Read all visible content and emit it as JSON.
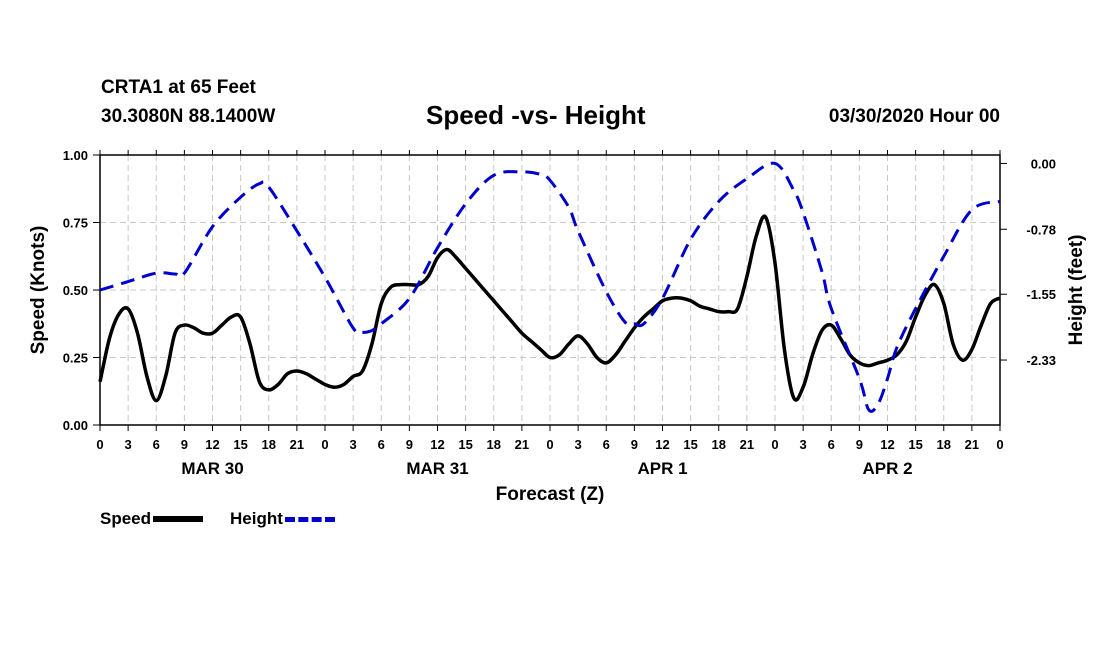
{
  "header": {
    "station": "CRTA1 at 65 Feet",
    "coords": "30.3080N 88.1400W",
    "title": "Speed -vs- Height",
    "date": "03/30/2020 Hour 00"
  },
  "legend": {
    "speed": "Speed",
    "height": "Height"
  },
  "colors": {
    "speed": "#000000",
    "height": "#0000cc",
    "grid": "#c8c8c8"
  },
  "chart_data": {
    "type": "line",
    "title": "Speed -vs- Height",
    "xlabel": "Forecast (Z)",
    "ylabel": "Speed (Knots)",
    "y2label": "Height (feet)",
    "xlim": [
      0,
      96
    ],
    "ylim": [
      0,
      1
    ],
    "y2lim": [
      -3.1,
      0.1
    ],
    "yticks": [
      0,
      0.25,
      0.5,
      0.75,
      1.0
    ],
    "ytick_labels": [
      "0.00",
      "0.25",
      "0.50",
      "0.75",
      "1.00"
    ],
    "y2ticks": [
      0,
      -0.78,
      -1.55,
      -2.33
    ],
    "y2tick_labels": [
      "0.00",
      "-0.78",
      "-1.55",
      "-2.33"
    ],
    "xticks": [
      0,
      3,
      6,
      9,
      12,
      15,
      18,
      21,
      24,
      27,
      30,
      33,
      36,
      39,
      42,
      45,
      48,
      51,
      54,
      57,
      60,
      63,
      66,
      69,
      72,
      75,
      78,
      81,
      84,
      87,
      90,
      93,
      96
    ],
    "xtick_labels": [
      "0",
      "3",
      "6",
      "9",
      "12",
      "15",
      "18",
      "21",
      "0",
      "3",
      "6",
      "9",
      "12",
      "15",
      "18",
      "21",
      "0",
      "3",
      "6",
      "9",
      "12",
      "15",
      "18",
      "21",
      "0",
      "3",
      "6",
      "9",
      "12",
      "15",
      "18",
      "21",
      "0"
    ],
    "date_labels": [
      {
        "x": 12,
        "label": "MAR 30"
      },
      {
        "x": 36,
        "label": "MAR 31"
      },
      {
        "x": 60,
        "label": "APR 1"
      },
      {
        "x": 84,
        "label": "APR 2"
      }
    ],
    "grid": true,
    "series": [
      {
        "name": "Speed",
        "axis": "left",
        "x": [
          0,
          1,
          2,
          3,
          4,
          5,
          6,
          7,
          8,
          9,
          10,
          11,
          12,
          13,
          14,
          15,
          16,
          17,
          18,
          19,
          20,
          21,
          22,
          23,
          24,
          25,
          26,
          27,
          28,
          29,
          30,
          31,
          32,
          33,
          34,
          35,
          36,
          37,
          38,
          39,
          40,
          41,
          42,
          43,
          44,
          45,
          46,
          47,
          48,
          49,
          50,
          51,
          52,
          53,
          54,
          55,
          56,
          57,
          58,
          59,
          60,
          61,
          62,
          63,
          64,
          65,
          66,
          67,
          68,
          69,
          70,
          71,
          72,
          73,
          74,
          75,
          76,
          77,
          78,
          79,
          80,
          81,
          82,
          83,
          84,
          85,
          86,
          87,
          88,
          89,
          90,
          91,
          92,
          93,
          94,
          95,
          96
        ],
        "values": [
          0.16,
          0.32,
          0.41,
          0.43,
          0.34,
          0.18,
          0.09,
          0.18,
          0.34,
          0.37,
          0.36,
          0.34,
          0.34,
          0.37,
          0.4,
          0.4,
          0.3,
          0.16,
          0.13,
          0.15,
          0.19,
          0.2,
          0.19,
          0.17,
          0.15,
          0.14,
          0.15,
          0.18,
          0.2,
          0.3,
          0.45,
          0.51,
          0.52,
          0.52,
          0.52,
          0.55,
          0.62,
          0.65,
          0.62,
          0.58,
          0.54,
          0.5,
          0.46,
          0.42,
          0.38,
          0.34,
          0.31,
          0.28,
          0.25,
          0.26,
          0.3,
          0.33,
          0.3,
          0.25,
          0.23,
          0.26,
          0.31,
          0.36,
          0.4,
          0.43,
          0.46,
          0.47,
          0.47,
          0.46,
          0.44,
          0.43,
          0.42,
          0.42,
          0.43,
          0.55,
          0.7,
          0.77,
          0.6,
          0.28,
          0.1,
          0.14,
          0.26,
          0.35,
          0.37,
          0.32,
          0.26,
          0.23,
          0.22,
          0.23,
          0.24,
          0.26,
          0.31,
          0.4,
          0.48,
          0.52,
          0.45,
          0.3,
          0.24,
          0.28,
          0.37,
          0.45,
          0.47
        ]
      },
      {
        "name": "Height",
        "axis": "right",
        "x": [
          0,
          3,
          6,
          8,
          9,
          12,
          15,
          17,
          18,
          21,
          24,
          27,
          28,
          29,
          30,
          33,
          36,
          39,
          42,
          45,
          47,
          48,
          50,
          51,
          54,
          56,
          57,
          58,
          60,
          63,
          66,
          69,
          72,
          74,
          75,
          77,
          78,
          81,
          82,
          83,
          84,
          85,
          87,
          90,
          93,
          96
        ],
        "values": [
          -1.5,
          -1.4,
          -1.3,
          -1.31,
          -1.3,
          -0.75,
          -0.4,
          -0.24,
          -0.28,
          -0.8,
          -1.35,
          -1.95,
          -2.0,
          -1.98,
          -1.9,
          -1.6,
          -1.0,
          -0.48,
          -0.14,
          -0.1,
          -0.13,
          -0.2,
          -0.52,
          -0.8,
          -1.52,
          -1.88,
          -1.9,
          -1.9,
          -1.6,
          -0.9,
          -0.45,
          -0.18,
          0.0,
          -0.32,
          -0.58,
          -1.28,
          -1.72,
          -2.55,
          -2.92,
          -2.85,
          -2.55,
          -2.18,
          -1.72,
          -1.1,
          -0.55,
          -0.45
        ]
      }
    ]
  }
}
